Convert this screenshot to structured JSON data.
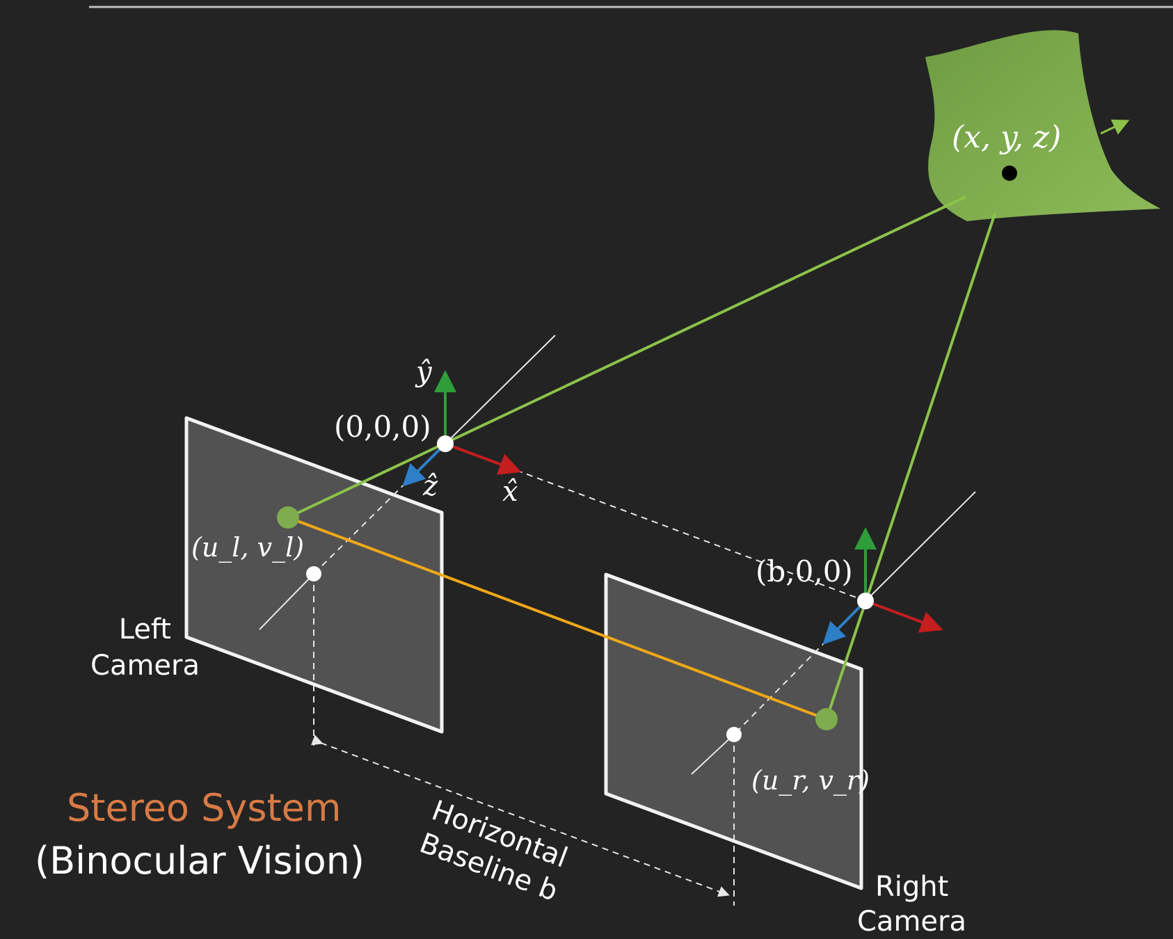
{
  "title": "Stereo System",
  "subtitle": "(Binocular Vision)",
  "point_label": "(x, y, z)",
  "origin_label": "(0,0,0)",
  "right_origin_label": "(b,0,0)",
  "left_image_point_label": "(u_l, v_l)",
  "right_image_point_label": "(u_r, v_r)",
  "axis_labels": {
    "x": "x̂",
    "y": "ŷ",
    "z": "ẑ"
  },
  "left_camera": {
    "line1": "Left",
    "line2": "Camera"
  },
  "right_camera": {
    "line1": "Right",
    "line2": "Camera"
  },
  "baseline": {
    "line1": "Horizontal",
    "line2": "Baseline b"
  },
  "colors": {
    "background": "#232323",
    "surface": "#7fac4e",
    "ray": "#8bc34a",
    "epipolar": "#f0a818",
    "x_axis": "#c41e1e",
    "y_axis": "#2f9e3a",
    "z_axis": "#2d7fc8",
    "title": "#d97a45",
    "text": "#ffffff"
  }
}
